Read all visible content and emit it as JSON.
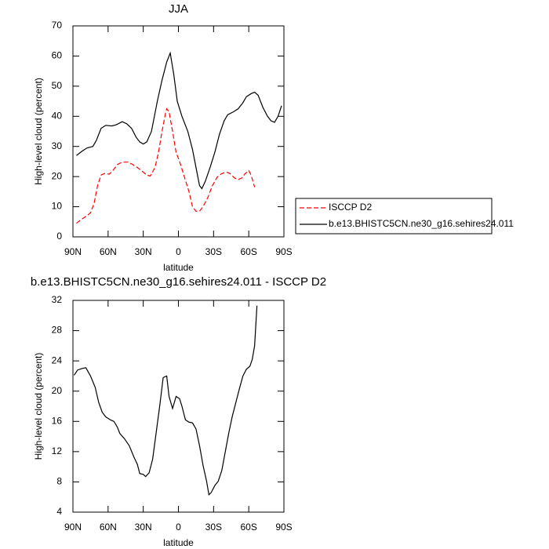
{
  "chart_data": [
    {
      "type": "line",
      "title": "JJA",
      "xlabel": "latitude",
      "ylabel": "High-level cloud (percent)",
      "xlim": [
        90,
        -90
      ],
      "xticks": [
        {
          "value": 90,
          "label": "90N"
        },
        {
          "value": 60,
          "label": "60N"
        },
        {
          "value": 30,
          "label": "30N"
        },
        0,
        {
          "value": -30,
          "label": "30S"
        },
        {
          "value": -60,
          "label": "60S"
        },
        {
          "value": -90,
          "label": "90S"
        }
      ],
      "ylim": [
        0,
        70
      ],
      "yticks": [
        0,
        10,
        20,
        30,
        40,
        50,
        60,
        70
      ],
      "legend": "right",
      "series": [
        {
          "name": "ISCCP D2",
          "color": "#ff0000",
          "style": "dashed",
          "x": [
            87,
            82,
            78,
            75,
            72,
            69,
            66,
            63,
            59,
            56,
            52,
            48,
            43,
            39,
            35,
            31,
            27,
            24,
            20,
            17,
            14,
            11,
            10,
            8,
            5,
            2,
            -1,
            -5,
            -9,
            -12,
            -15,
            -18,
            -21,
            -25,
            -29,
            -33,
            -37,
            -41,
            -44,
            -48,
            -51,
            -54,
            -57,
            -60,
            -62,
            -65
          ],
          "values": [
            4.5,
            6,
            7,
            8,
            11,
            17,
            20.5,
            21,
            20.8,
            22,
            24,
            24.8,
            24.8,
            24,
            23,
            21.8,
            20.5,
            20.2,
            23,
            28,
            35,
            41,
            42.5,
            41.5,
            35,
            28,
            25,
            20,
            15,
            10,
            8.5,
            8.5,
            10,
            13,
            17,
            19.8,
            21,
            21.5,
            21,
            19.5,
            19,
            19.5,
            21,
            22,
            20.5,
            16.5
          ]
        },
        {
          "name": "b.e13.BHISTC5CN.ne30_g16.sehires24.011",
          "color": "#000000",
          "style": "solid",
          "x": [
            87,
            82,
            78,
            73,
            70,
            66,
            62,
            57,
            53,
            48,
            44,
            40,
            36,
            33,
            30,
            27,
            23,
            18,
            14,
            10,
            7,
            4,
            1,
            -3,
            -8,
            -12,
            -16,
            -18,
            -20,
            -23,
            -27,
            -31,
            -35,
            -39,
            -42,
            -47,
            -51,
            -55,
            -58,
            -62,
            -65,
            -68,
            -72,
            -76,
            -79,
            -82,
            -85,
            -88
          ],
          "values": [
            27,
            28.5,
            29.5,
            30,
            32,
            36,
            37,
            36.8,
            37.2,
            38.2,
            37.5,
            36,
            33,
            31.5,
            30.8,
            31.5,
            35,
            45,
            52,
            58,
            61,
            54,
            45,
            40,
            35,
            29,
            21,
            17,
            16,
            18.5,
            23,
            28,
            34,
            38.5,
            40.5,
            41.5,
            42.5,
            44.5,
            46.5,
            47.5,
            48,
            47,
            43,
            40,
            38.5,
            38,
            40,
            43.5
          ]
        }
      ]
    },
    {
      "type": "line",
      "title": "b.e13.BHISTC5CN.ne30_g16.sehires24.011 - ISCCP D2",
      "xlabel": "latitude",
      "ylabel": "High-level cloud (percent)",
      "xlim": [
        90,
        -90
      ],
      "xticks": [
        {
          "value": 90,
          "label": "90N"
        },
        {
          "value": 60,
          "label": "60N"
        },
        {
          "value": 30,
          "label": "30N"
        },
        0,
        {
          "value": -30,
          "label": "30S"
        },
        {
          "value": -60,
          "label": "60S"
        },
        {
          "value": -90,
          "label": "90S"
        }
      ],
      "ylim": [
        4,
        32
      ],
      "yticks": [
        4,
        8,
        12,
        16,
        20,
        24,
        28,
        32
      ],
      "color": "#000000",
      "x": [
        89,
        86,
        82,
        79,
        75,
        71,
        68,
        65,
        62,
        58,
        55,
        52,
        50,
        46,
        42,
        38,
        35,
        33,
        30,
        28,
        25,
        22,
        19,
        16,
        13,
        10,
        8,
        5,
        2,
        -1,
        -3,
        -6,
        -9,
        -12,
        -15,
        -18,
        -21,
        -24,
        -26,
        -28,
        -31,
        -34,
        -37,
        -40,
        -43,
        -46,
        -49,
        -52,
        -55,
        -58,
        -61,
        -63,
        -65,
        -67
      ],
      "values": [
        22.1,
        22.8,
        23,
        23.1,
        22,
        20.5,
        18.5,
        17.2,
        16.6,
        16.2,
        16,
        15.2,
        14.4,
        13.7,
        12.8,
        11.3,
        10.3,
        9.1,
        9.0,
        8.7,
        9.2,
        11,
        14.5,
        18,
        21.8,
        22,
        19.3,
        17.7,
        19.3,
        19,
        18,
        16.2,
        15.9,
        15.8,
        15,
        12.8,
        10.2,
        8.1,
        6.3,
        6.6,
        7.5,
        8.1,
        9.5,
        12,
        14.5,
        16.7,
        18.5,
        20.3,
        22,
        22.9,
        23.3,
        24.2,
        26,
        31.3
      ]
    }
  ]
}
